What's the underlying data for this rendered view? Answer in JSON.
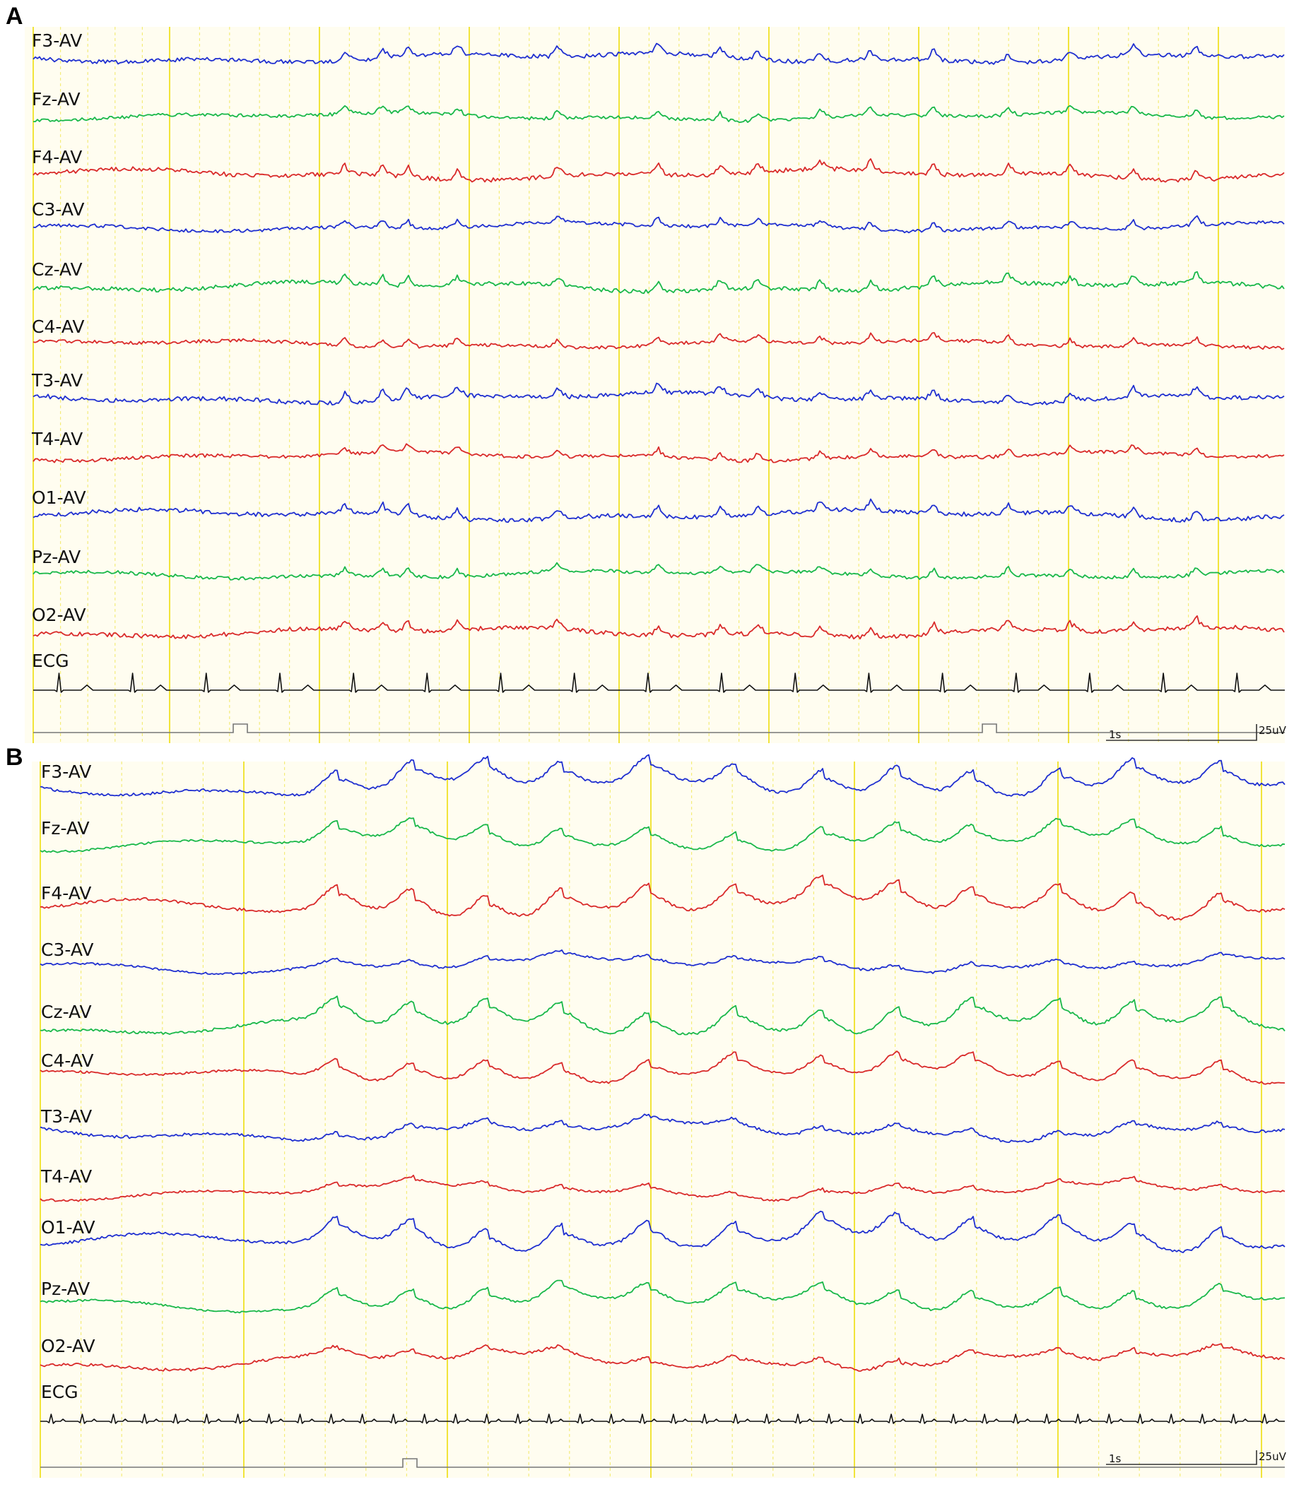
{
  "chart_data": [
    {
      "type": "line",
      "panel_label": "A",
      "channels": [
        {
          "name": "F3-AV",
          "color": "#1f2fd0",
          "pattern": "low-amplitude background with small sharp transients"
        },
        {
          "name": "Fz-AV",
          "color": "#19b84a",
          "pattern": "background with isolated sharp waves"
        },
        {
          "name": "F4-AV",
          "color": "#d92a2a",
          "pattern": "low-amplitude background"
        },
        {
          "name": "C3-AV",
          "color": "#1f2fd0",
          "pattern": "background with brief spike bursts"
        },
        {
          "name": "Cz-AV",
          "color": "#19b84a",
          "pattern": "background with brief spike bursts"
        },
        {
          "name": "C4-AV",
          "color": "#d92a2a",
          "pattern": "flat low-amplitude"
        },
        {
          "name": "T3-AV",
          "color": "#1f2fd0",
          "pattern": "low-amplitude background"
        },
        {
          "name": "T4-AV",
          "color": "#d92a2a",
          "pattern": "low-amplitude background"
        },
        {
          "name": "O1-AV",
          "color": "#1f2fd0",
          "pattern": "background with sharp transients"
        },
        {
          "name": "Pz-AV",
          "color": "#19b84a",
          "pattern": "background with sharp transients"
        },
        {
          "name": "O2-AV",
          "color": "#d92a2a",
          "pattern": "low-amplitude background"
        },
        {
          "name": "ECG",
          "color": "#111111",
          "pattern": "QRS complexes"
        }
      ],
      "ecg_beats_visible": 17,
      "time_scale_label": "1s",
      "amplitude_scale_label": "25uV",
      "trigger_marks": 2,
      "gridlines": "yellow solid/dashed vertical time lines"
    },
    {
      "type": "line",
      "panel_label": "B",
      "channels": [
        {
          "name": "F3-AV",
          "color": "#1f2fd0",
          "pattern": "periodic complexes"
        },
        {
          "name": "Fz-AV",
          "color": "#19b84a",
          "pattern": "periodic complexes"
        },
        {
          "name": "F4-AV",
          "color": "#d92a2a",
          "pattern": "periodic complexes"
        },
        {
          "name": "C3-AV",
          "color": "#1f2fd0",
          "pattern": "low-amplitude background"
        },
        {
          "name": "Cz-AV",
          "color": "#19b84a",
          "pattern": "periodic sharp-wave complexes"
        },
        {
          "name": "C4-AV",
          "color": "#d92a2a",
          "pattern": "periodic complexes"
        },
        {
          "name": "T3-AV",
          "color": "#1f2fd0",
          "pattern": "slow waves with sharp components"
        },
        {
          "name": "T4-AV",
          "color": "#d92a2a",
          "pattern": "background with sharp components"
        },
        {
          "name": "O1-AV",
          "color": "#1f2fd0",
          "pattern": "periodic complexes"
        },
        {
          "name": "Pz-AV",
          "color": "#19b84a",
          "pattern": "periodic slow complexes"
        },
        {
          "name": "O2-AV",
          "color": "#d92a2a",
          "pattern": "low-amplitude background"
        },
        {
          "name": "ECG",
          "color": "#111111",
          "pattern": "QRS complexes"
        }
      ],
      "ecg_beats_visible": 40,
      "time_scale_label": "1s",
      "amplitude_scale_label": "25uV",
      "trigger_marks": 1,
      "gridlines": "yellow solid/dashed vertical time lines"
    }
  ]
}
